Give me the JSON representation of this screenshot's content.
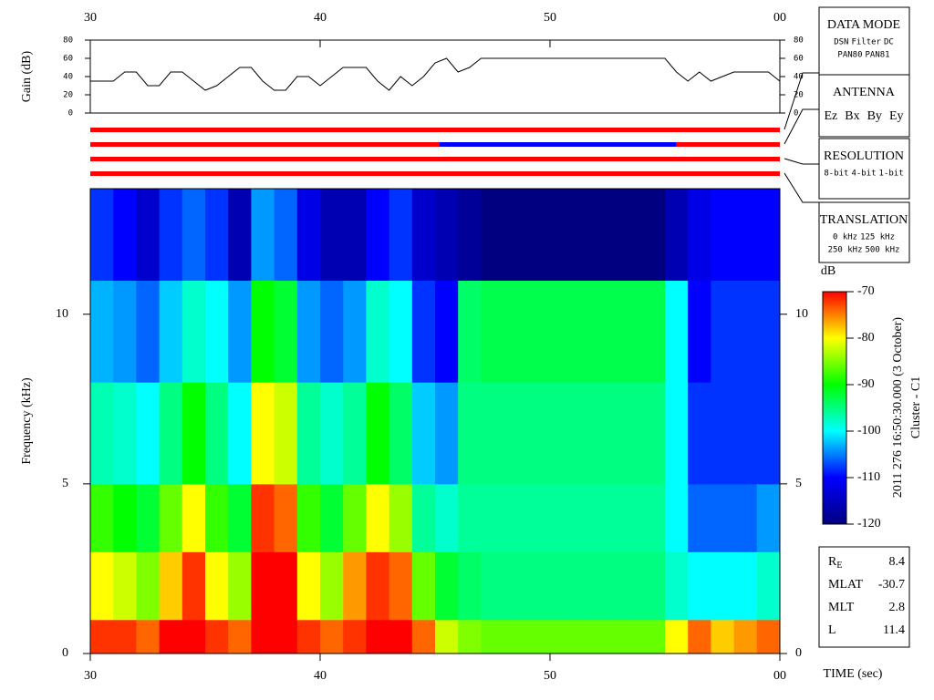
{
  "chart_data": [
    {
      "type": "line",
      "ylabel": "Gain (dB)",
      "color": "#000000",
      "x": [
        30,
        30.5,
        31,
        31.5,
        32,
        32.5,
        33,
        33.5,
        34,
        34.5,
        35,
        35.5,
        36,
        36.5,
        37,
        37.5,
        38,
        38.5,
        39,
        39.5,
        40,
        40.5,
        41,
        41.5,
        42,
        42.5,
        43,
        43.5,
        44,
        44.5,
        45,
        45.5,
        46,
        46.5,
        47,
        47.5,
        48,
        48.5,
        49,
        49.5,
        50,
        50.5,
        51,
        51.5,
        52,
        52.5,
        53,
        53.5,
        54,
        54.5,
        55,
        55.5,
        56,
        56.5,
        57,
        57.5,
        58,
        58.5,
        59,
        59.5,
        60
      ],
      "values": [
        35,
        35,
        35,
        45,
        45,
        30,
        30,
        45,
        45,
        35,
        25,
        30,
        40,
        50,
        50,
        35,
        25,
        25,
        40,
        40,
        30,
        40,
        50,
        50,
        50,
        35,
        25,
        40,
        30,
        40,
        55,
        60,
        45,
        50,
        60,
        60,
        60,
        60,
        60,
        60,
        60,
        60,
        60,
        60,
        60,
        60,
        60,
        60,
        60,
        60,
        60,
        45,
        35,
        45,
        35,
        40,
        45,
        45,
        45,
        45,
        35
      ],
      "xlim": [
        30,
        60
      ],
      "xticks": [
        30,
        40,
        50,
        {
          "value": 60,
          "label": "00"
        }
      ],
      "ylim": [
        0,
        80
      ],
      "yticks": [
        0,
        20,
        40,
        60,
        80
      ]
    },
    {
      "type": "status",
      "rows": [
        [
          {
            "start": 30,
            "end": 60,
            "color": "#ff0000"
          }
        ],
        [
          {
            "start": 30,
            "end": 45.2,
            "color": "#ff0000"
          },
          {
            "start": 45.2,
            "end": 55.5,
            "color": "#0000ff"
          },
          {
            "start": 55.5,
            "end": 60,
            "color": "#ff0000"
          }
        ],
        [
          {
            "start": 30,
            "end": 60,
            "color": "#ff0000"
          }
        ],
        [
          {
            "start": 30,
            "end": 60,
            "color": "#ff0000"
          }
        ]
      ],
      "xlim": [
        30,
        60
      ]
    },
    {
      "type": "heatmap",
      "xlabel": "TIME (sec)",
      "ylabel": "Frequency (kHz)",
      "x_bins": [
        30,
        31,
        32,
        33,
        34,
        35,
        36,
        37,
        38,
        39,
        40,
        41,
        42,
        43,
        44,
        45,
        46,
        47,
        48,
        49,
        50,
        51,
        52,
        53,
        54,
        55,
        56,
        57,
        58,
        59,
        60
      ],
      "y_bins": [
        0,
        1,
        3,
        5,
        8,
        11,
        13.7
      ],
      "z": [
        [
          -72,
          -80,
          -88,
          -97,
          -103,
          -108
        ],
        [
          -72,
          -82,
          -90,
          -98,
          -104,
          -110
        ],
        [
          -74,
          -85,
          -92,
          -100,
          -106,
          -114
        ],
        [
          -70,
          -78,
          -86,
          -95,
          -102,
          -108
        ],
        [
          -70,
          -72,
          -80,
          -90,
          -98,
          -106
        ],
        [
          -72,
          -80,
          -88,
          -95,
          -100,
          -108
        ],
        [
          -74,
          -84,
          -92,
          -100,
          -104,
          -116
        ],
        [
          -70,
          -70,
          -72,
          -80,
          -90,
          -104
        ],
        [
          -70,
          -70,
          -74,
          -82,
          -92,
          -106
        ],
        [
          -72,
          -80,
          -88,
          -96,
          -104,
          -112
        ],
        [
          -74,
          -84,
          -92,
          -98,
          -106,
          -116
        ],
        [
          -72,
          -76,
          -86,
          -96,
          -104,
          -116
        ],
        [
          -70,
          -72,
          -80,
          -90,
          -98,
          -110
        ],
        [
          -70,
          -74,
          -84,
          -94,
          -100,
          -108
        ],
        [
          -74,
          -86,
          -96,
          -102,
          -108,
          -114
        ],
        [
          -82,
          -92,
          -98,
          -104,
          -110,
          -116
        ],
        [
          -85,
          -94,
          -96,
          -95,
          -94,
          -118
        ],
        [
          -86,
          -95,
          -96,
          -95,
          -93,
          -120
        ],
        [
          -86,
          -95,
          -96,
          -95,
          -93,
          -120
        ],
        [
          -86,
          -95,
          -96,
          -95,
          -93,
          -120
        ],
        [
          -86,
          -95,
          -96,
          -95,
          -93,
          -120
        ],
        [
          -86,
          -95,
          -96,
          -95,
          -93,
          -120
        ],
        [
          -86,
          -95,
          -96,
          -95,
          -93,
          -120
        ],
        [
          -86,
          -95,
          -96,
          -95,
          -93,
          -120
        ],
        [
          -86,
          -95,
          -96,
          -95,
          -93,
          -120
        ],
        [
          -80,
          -98,
          -100,
          -100,
          -100,
          -116
        ],
        [
          -74,
          -100,
          -106,
          -108,
          -110,
          -112
        ],
        [
          -78,
          -100,
          -106,
          -108,
          -108,
          -110
        ],
        [
          -76,
          -100,
          -106,
          -108,
          -108,
          -110
        ],
        [
          -74,
          -98,
          -104,
          -108,
          -108,
          -110
        ]
      ],
      "xlim": [
        30,
        60
      ],
      "xticks": [
        30,
        40,
        50,
        {
          "value": 60,
          "label": "00"
        }
      ],
      "ylim": [
        0,
        13.7
      ],
      "yticks": [
        0,
        5,
        10
      ],
      "zlim": [
        -120,
        -70
      ],
      "zticks": [
        -70,
        -80,
        -90,
        -100,
        -110,
        -120
      ],
      "zlabel": "dB",
      "colormap": [
        "#000080",
        "#0000ff",
        "#00ffff",
        "#00ff00",
        "#ffff00",
        "#ff0000"
      ]
    }
  ],
  "annotations": {
    "date": "2011 276 16:50:30.000 (3 October)",
    "spacecraft": "Cluster - C1"
  },
  "panels": [
    {
      "title": "DATA MODE",
      "font": "mono",
      "rows": [
        [
          {
            "text": "DSN",
            "color": "#ff0000"
          },
          {
            "text": "Filter",
            "color": "#00cc00"
          },
          {
            "text": "DC",
            "color": "#0000ff"
          }
        ],
        [
          {
            "text": "PAN80",
            "color": "#000000"
          },
          {
            "text": "PAN81",
            "color": "#00cccc"
          }
        ]
      ]
    },
    {
      "title": "ANTENNA",
      "font": "serif",
      "rows": [
        [
          {
            "text": "Ez",
            "color": "#ff0000"
          },
          {
            "text": "Bx",
            "color": "#00cc00"
          },
          {
            "text": "By",
            "color": "#0000ff"
          },
          {
            "text": "Ey",
            "color": "#000000"
          }
        ]
      ]
    },
    {
      "title": "RESOLUTION",
      "font": "mono",
      "rows": [
        [
          {
            "text": "8-bit",
            "color": "#ff0000"
          },
          {
            "text": "4-bit",
            "color": "#00cc00"
          },
          {
            "text": "1-bit",
            "color": "#0000ff"
          }
        ]
      ]
    },
    {
      "title": "TRANSLATION",
      "font": "mono",
      "rows": [
        [
          {
            "text": "0 kHz",
            "color": "#ff0000"
          },
          {
            "text": "125 kHz",
            "color": "#00cc00"
          }
        ],
        [
          {
            "text": "250 kHz",
            "color": "#0000ff"
          },
          {
            "text": "500 kHz",
            "color": "#000000"
          }
        ]
      ]
    }
  ],
  "orbit": [
    {
      "label": "R",
      "sub": "E",
      "value": 8.4
    },
    {
      "label": "MLAT",
      "value": -30.7
    },
    {
      "label": "MLT",
      "value": 2.8
    },
    {
      "label": "L",
      "value": 11.4
    }
  ]
}
